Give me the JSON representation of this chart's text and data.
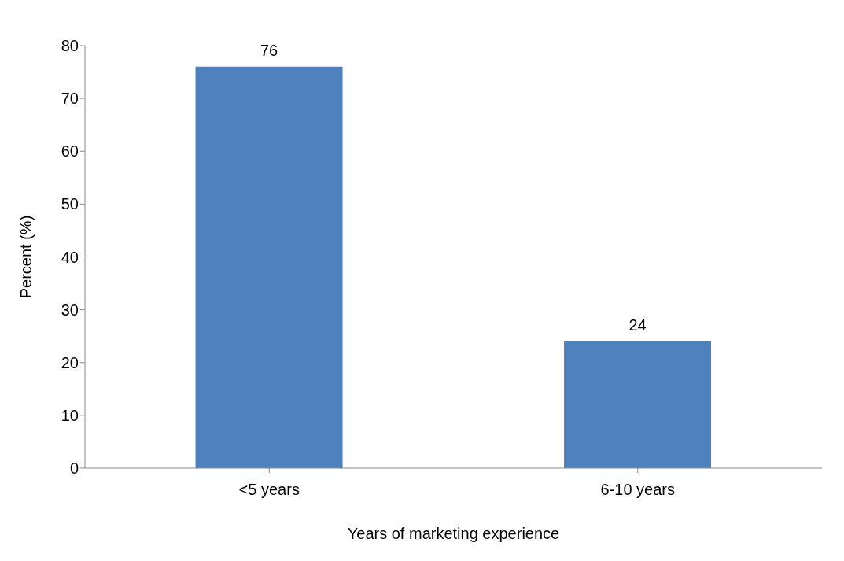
{
  "chart_data": {
    "type": "bar",
    "xlabel": "Years of marketing experience",
    "ylabel": "Percent (%)",
    "categories": [
      "<5 years",
      "6-10 years"
    ],
    "values": [
      76,
      24
    ],
    "color": "#4f81bd",
    "ylim": [
      0,
      80
    ],
    "yticks": [
      0,
      10,
      20,
      30,
      40,
      50,
      60,
      70,
      80
    ],
    "grid": false,
    "data_labels": true
  }
}
